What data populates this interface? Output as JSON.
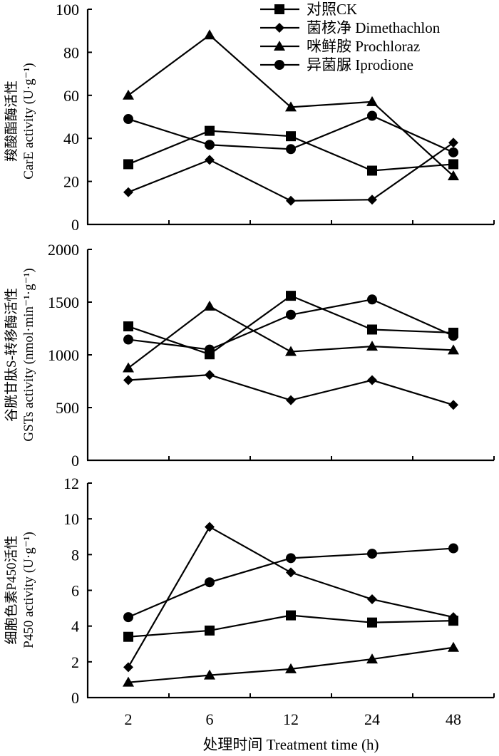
{
  "chart_data": [
    {
      "type": "line",
      "panel": "CarE",
      "ylabel_lines": [
        "羧酸酯酶活性",
        "CarE  activity (U·g⁻¹)"
      ],
      "x": [
        "2",
        "6",
        "12",
        "24",
        "48"
      ],
      "ylim": [
        0,
        100
      ],
      "yticks": [
        0,
        20,
        40,
        60,
        80,
        100
      ],
      "grid": false,
      "series": [
        {
          "name": "对照CK",
          "marker": "square",
          "values": [
            28,
            43.5,
            41,
            25,
            28
          ]
        },
        {
          "name": "菌核净 Dimethachlon",
          "marker": "diamond",
          "values": [
            15,
            30,
            11,
            11.5,
            38
          ]
        },
        {
          "name": "咪鲜胺 Prochloraz",
          "marker": "triangle",
          "values": [
            60,
            88,
            54.5,
            57,
            22.5
          ]
        },
        {
          "name": "异菌脲 Iprodione",
          "marker": "circle",
          "values": [
            49,
            37,
            35,
            50.5,
            33.5
          ]
        }
      ]
    },
    {
      "type": "line",
      "panel": "GSTs",
      "ylabel_lines": [
        "谷胱甘肽S-转移酶活性",
        "GSTs activity (nmol·min⁻¹·g⁻¹)"
      ],
      "x": [
        "2",
        "6",
        "12",
        "24",
        "48"
      ],
      "ylim": [
        0,
        2000
      ],
      "yticks": [
        0,
        500,
        1000,
        1500,
        2000
      ],
      "grid": false,
      "series": [
        {
          "name": "对照CK",
          "marker": "square",
          "values": [
            1270,
            1005,
            1560,
            1240,
            1210
          ]
        },
        {
          "name": "菌核净 Dimethachlon",
          "marker": "diamond",
          "values": [
            760,
            810,
            570,
            760,
            525
          ]
        },
        {
          "name": "咪鲜胺 Prochloraz",
          "marker": "triangle",
          "values": [
            875,
            1460,
            1030,
            1080,
            1045
          ]
        },
        {
          "name": "异菌脲 Iprodione",
          "marker": "circle",
          "values": [
            1145,
            1050,
            1380,
            1525,
            1180
          ]
        }
      ]
    },
    {
      "type": "line",
      "panel": "P450",
      "ylabel_lines": [
        "细胞色素P450活性",
        "P450 activity (U·g⁻¹)"
      ],
      "x": [
        "2",
        "6",
        "12",
        "24",
        "48"
      ],
      "ylim": [
        0,
        12
      ],
      "yticks": [
        0,
        2,
        4,
        6,
        8,
        10,
        12
      ],
      "grid": false,
      "series": [
        {
          "name": "对照CK",
          "marker": "square",
          "values": [
            3.4,
            3.75,
            4.6,
            4.2,
            4.3
          ]
        },
        {
          "name": "菌核净 Dimethachlon",
          "marker": "diamond",
          "values": [
            1.7,
            9.55,
            7.0,
            5.5,
            4.5
          ]
        },
        {
          "name": "咪鲜胺 Prochloraz",
          "marker": "triangle",
          "values": [
            0.85,
            1.25,
            1.6,
            2.15,
            2.8
          ]
        },
        {
          "name": "异菌脲 Iprodione",
          "marker": "circle",
          "values": [
            4.5,
            6.45,
            7.8,
            8.05,
            8.35
          ]
        }
      ]
    }
  ],
  "legend": {
    "placement": "top-right",
    "entries": [
      {
        "label": "对照CK",
        "marker": "square"
      },
      {
        "label": "菌核净 Dimethachlon",
        "marker": "diamond"
      },
      {
        "label": "咪鲜胺 Prochloraz",
        "marker": "triangle"
      },
      {
        "label": "异菌脲 Iprodione",
        "marker": "circle"
      }
    ]
  },
  "xlabel": "处理时间 Treatment time (h)",
  "colors": {
    "line": "#000000",
    "background": "#ffffff"
  }
}
